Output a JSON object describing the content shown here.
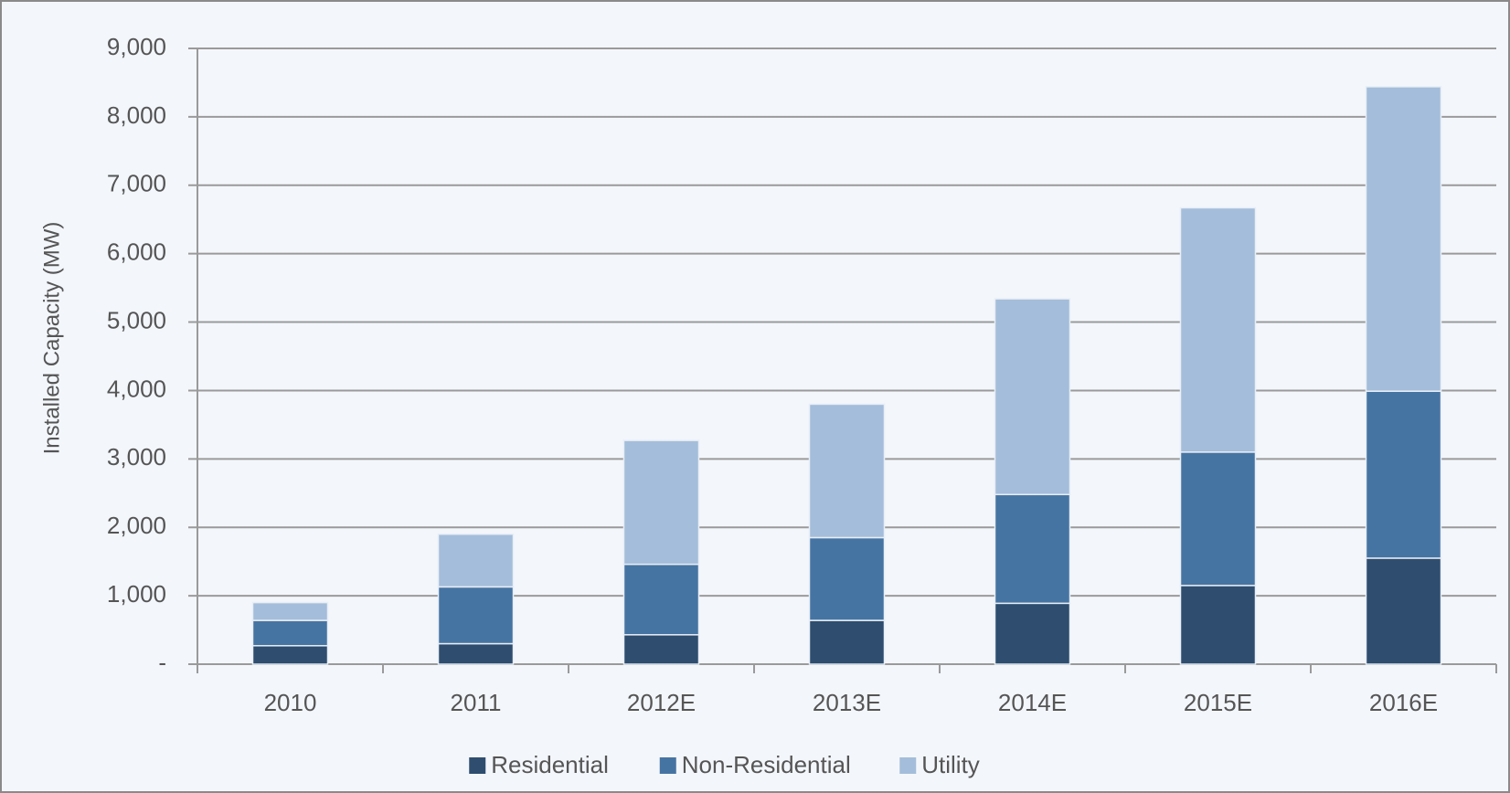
{
  "chart_data": {
    "type": "stacked_bar",
    "y_label": "Installed Capacity (MW)",
    "categories": [
      "2010",
      "2011",
      "2012E",
      "2013E",
      "2014E",
      "2015E",
      "2016E"
    ],
    "series": [
      {
        "name": "Residential",
        "color": "#2e4d6f",
        "values": [
          270,
          300,
          430,
          640,
          890,
          1150,
          1550
        ]
      },
      {
        "name": "Non-Residential",
        "color": "#4674a2",
        "values": [
          370,
          830,
          1030,
          1210,
          1590,
          1950,
          2440
        ]
      },
      {
        "name": "Utility",
        "color": "#a4bdda",
        "values": [
          260,
          770,
          1810,
          1950,
          2860,
          3570,
          4450
        ]
      }
    ],
    "ylim": [
      0,
      9000
    ],
    "yticks": [
      {
        "value": 0,
        "label": "-"
      },
      {
        "value": 1000,
        "label": "1,000"
      },
      {
        "value": 2000,
        "label": "2,000"
      },
      {
        "value": 3000,
        "label": "3,000"
      },
      {
        "value": 4000,
        "label": "4,000"
      },
      {
        "value": 5000,
        "label": "5,000"
      },
      {
        "value": 6000,
        "label": "6,000"
      },
      {
        "value": 7000,
        "label": "7,000"
      },
      {
        "value": 8000,
        "label": "8,000"
      },
      {
        "value": 9000,
        "label": "9,000"
      }
    ],
    "grid": true,
    "legend": "bottom"
  }
}
